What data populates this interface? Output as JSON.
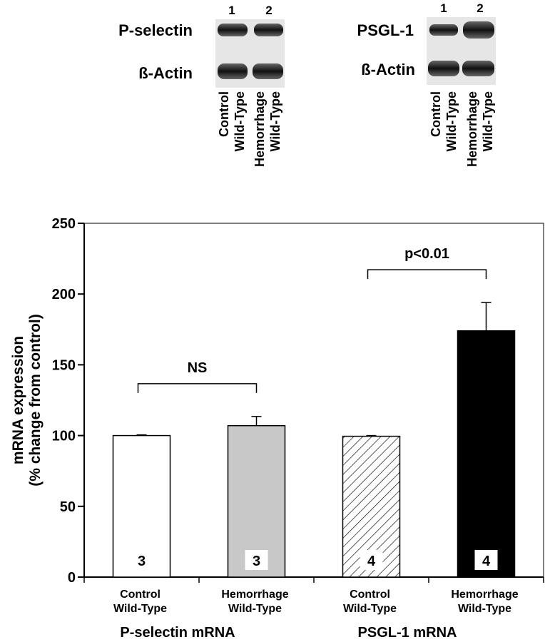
{
  "blots": [
    {
      "lanes": [
        "1",
        "2"
      ],
      "rows": [
        "P-selectin",
        "ß-Actin"
      ],
      "lane_labels": [
        [
          "Control",
          "Wild-Type"
        ],
        [
          "Hemorrhage",
          "Wild-Type"
        ]
      ]
    },
    {
      "lanes": [
        "1",
        "2"
      ],
      "rows": [
        "PSGL-1",
        "ß-Actin"
      ],
      "lane_labels": [
        [
          "Control",
          "Wild-Type"
        ],
        [
          "Hemorrhage",
          "Wild-Type"
        ]
      ]
    }
  ],
  "chart_data": {
    "type": "bar",
    "y_label": [
      "mRNA expression",
      "(% change from control)"
    ],
    "categories": [
      [
        "Control",
        "Wild-Type"
      ],
      [
        "Hemorrhage",
        "Wild-Type"
      ],
      [
        "Control",
        "Wild-Type"
      ],
      [
        "Hemorrhage",
        "Wild-Type"
      ]
    ],
    "groups": [
      "P-selectin mRNA",
      "PSGL-1 mRNA"
    ],
    "values": [
      100,
      107,
      99.5,
      174
    ],
    "errors": [
      0.5,
      6.5,
      0.5,
      20
    ],
    "n_labels": [
      "3",
      "3",
      "4",
      "4"
    ],
    "fills": [
      "#ffffff",
      "#c8c8c8",
      "#ffffff",
      "#000000"
    ],
    "hatched": [
      false,
      false,
      true,
      false
    ],
    "annotations": [
      {
        "text": "NS",
        "from": 0,
        "to": 1
      },
      {
        "text": "p<0.01",
        "from": 2,
        "to": 3
      }
    ],
    "ylim": [
      0,
      250
    ],
    "yticks": [
      0,
      50,
      100,
      150,
      200,
      250
    ]
  }
}
